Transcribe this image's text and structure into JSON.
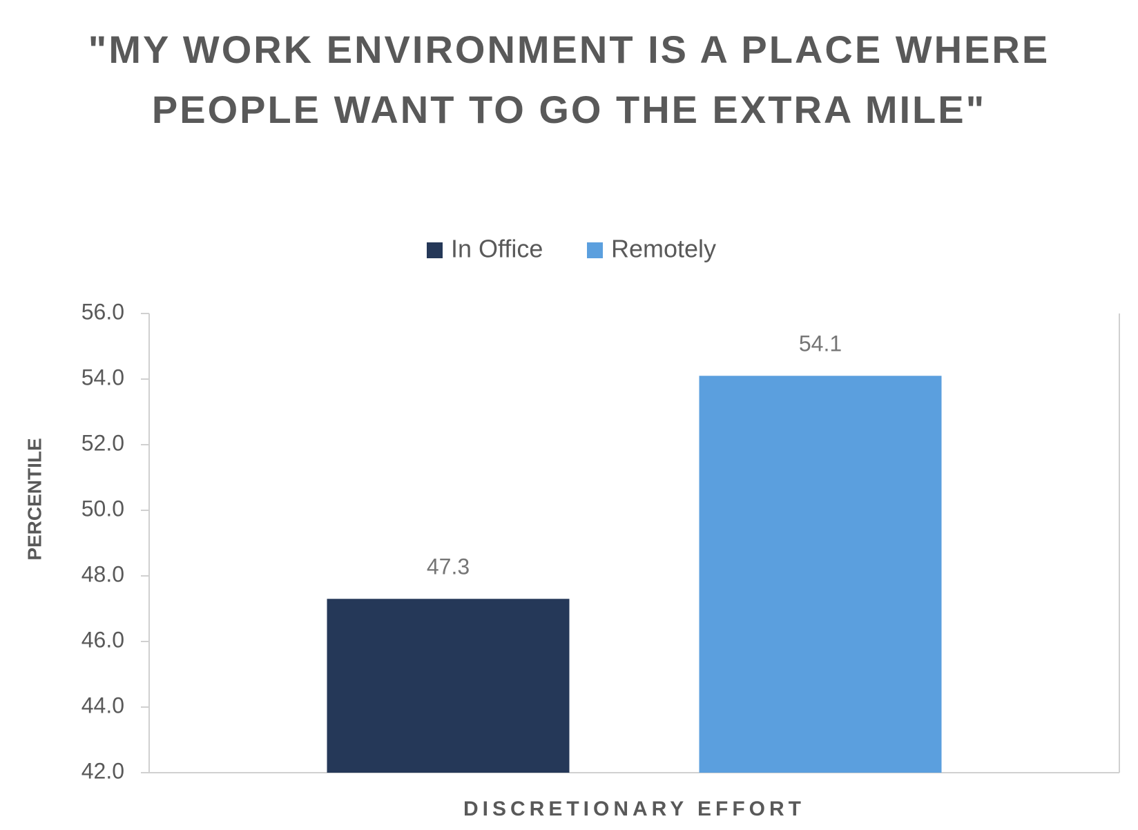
{
  "chart_data": {
    "type": "bar",
    "title": "\"MY WORK ENVIRONMENT IS A PLACE WHERE PEOPLE WANT TO GO THE EXTRA MILE\"",
    "y_label": "PERCENTILE",
    "categories": [
      "DISCRETIONARY EFFORT"
    ],
    "series": [
      {
        "name": "In Office",
        "color": "#253858",
        "values": [
          47.3
        ]
      },
      {
        "name": "Remotely",
        "color": "#5b9fde",
        "values": [
          54.1
        ]
      }
    ],
    "ylim": [
      42,
      56
    ],
    "yticks": [
      {
        "value": 42,
        "label": "42.0"
      },
      {
        "value": 44,
        "label": "44.0"
      },
      {
        "value": 46,
        "label": "46.0"
      },
      {
        "value": 48,
        "label": "48.0"
      },
      {
        "value": 50,
        "label": "50.0"
      },
      {
        "value": 52,
        "label": "52.0"
      },
      {
        "value": 54,
        "label": "54.0"
      },
      {
        "value": 56,
        "label": "56.0"
      }
    ],
    "grid": false,
    "legend": "top"
  }
}
